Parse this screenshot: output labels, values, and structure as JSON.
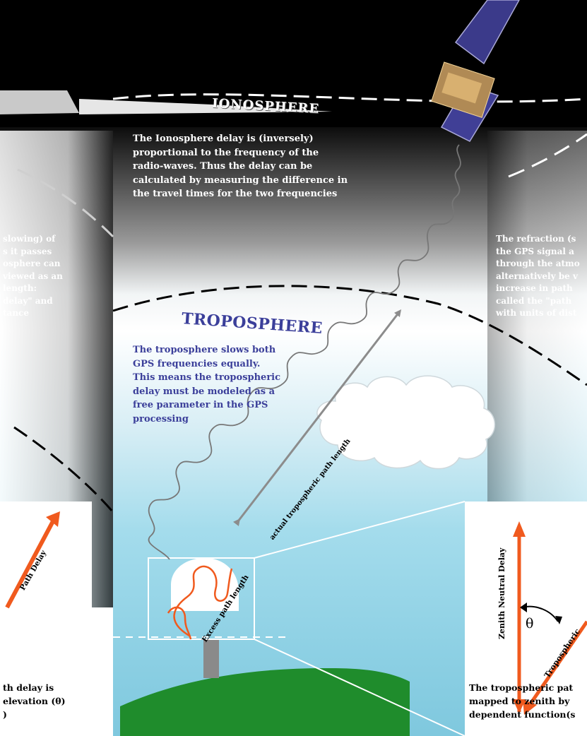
{
  "layers": {
    "ionosphere_label": "IONOSPHERE",
    "troposphere_label": "TROPOSPHERE"
  },
  "ionosphere_text": [
    "The Ionosphere delay is (inversely)",
    "proportional to the frequency of the",
    "radio-waves. Thus the delay can be",
    "calculated by measuring the difference in",
    "the travel times for the two frequencies"
  ],
  "refraction_text_right": [
    "The refraction (s",
    "the GPS signal a",
    "through the atmo",
    "alternatively be v",
    "increase in path",
    "called the \"path",
    "with units of dist"
  ],
  "refraction_text_left": [
    "slowing) of",
    "s it passes",
    "osphere can",
    "viewed as an",
    "length:",
    "delay\" and",
    "tance"
  ],
  "troposphere_text": [
    "The troposphere slows both",
    "GPS frequencies equally.",
    "This means the tropospheric",
    "delay must be modeled as a",
    "free parameter in the GPS",
    "processing"
  ],
  "path_labels": {
    "actual": "actual tropospheric path length",
    "excess": "Excess path length",
    "zenith": "Zenith Neutral Delay",
    "slant_right": "Tropospheric",
    "slant_left": "Path Delay",
    "angle": "θ"
  },
  "right_box_text": [
    "The tropospheric pat",
    "mapped to zenith by",
    "dependent function(s"
  ],
  "left_box_text": [
    "th delay is",
    "elevation (θ)",
    ")"
  ],
  "colors": {
    "orange": "#f05a1e",
    "blue_text": "#3b3f9a",
    "ground": "#1f8c2c",
    "sky": "#8fd0e4",
    "arrow_gray": "#8c8c8c"
  }
}
